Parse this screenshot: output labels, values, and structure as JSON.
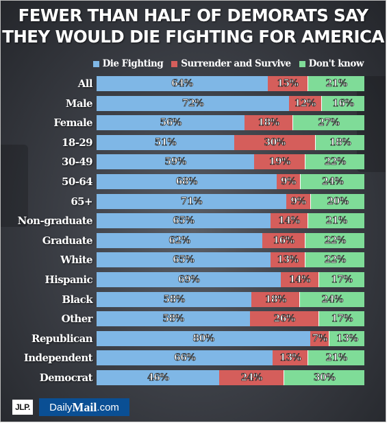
{
  "title_line1": "FEWER THAN HALF OF DEMORATS SAY",
  "title_line2": "THEY WOULD DIE FIGHTING FOR AMERICA",
  "legend": [
    {
      "label": "Die Fighting",
      "color": "#7fb7e6"
    },
    {
      "label": "Surrender and Survive",
      "color": "#d55e5b"
    },
    {
      "label": "Don't know",
      "color": "#7fdc98"
    }
  ],
  "footer": {
    "jlp": "JLP.",
    "brand_prefix": "Daily",
    "brand_main": "Mail",
    "brand_suffix": ".com"
  },
  "chart_data": {
    "type": "bar",
    "orientation": "horizontal-stacked-100",
    "title": "FEWER THAN HALF OF DEMORATS SAY THEY WOULD DIE FIGHTING FOR AMERICA",
    "categories": [
      "All",
      "Male",
      "Female",
      "18-29",
      "30-49",
      "50-64",
      "65+",
      "Non-graduate",
      "Graduate",
      "White",
      "Hispanic",
      "Black",
      "Other",
      "Republican",
      "Independent",
      "Democrat"
    ],
    "series": [
      {
        "name": "Die Fighting",
        "color": "#7fb7e6",
        "values": [
          64,
          72,
          56,
          51,
          59,
          68,
          71,
          65,
          62,
          65,
          69,
          58,
          58,
          80,
          66,
          46
        ]
      },
      {
        "name": "Surrender and Survive",
        "color": "#d55e5b",
        "values": [
          15,
          12,
          18,
          30,
          19,
          9,
          9,
          14,
          16,
          13,
          14,
          18,
          26,
          7,
          13,
          24
        ]
      },
      {
        "name": "Don't know",
        "color": "#7fdc98",
        "values": [
          21,
          16,
          27,
          18,
          22,
          24,
          20,
          21,
          22,
          22,
          17,
          24,
          17,
          13,
          21,
          30
        ]
      }
    ],
    "value_suffix": "%",
    "legend_position": "top-right"
  }
}
